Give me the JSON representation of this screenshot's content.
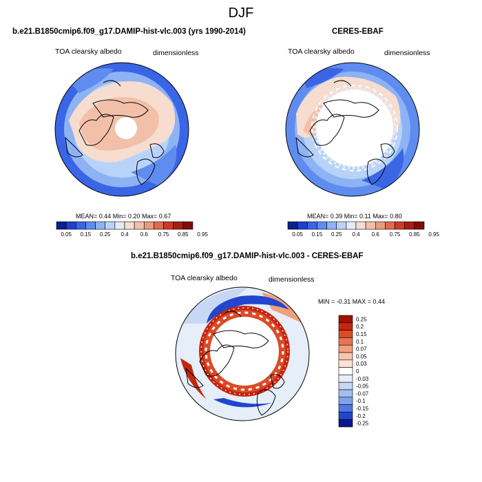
{
  "figure": {
    "title": "DJF"
  },
  "panels": [
    {
      "id": "model",
      "title": "b.e21.B1850cmip6.f09_g17.DAMIP-hist-vlc.003 (yrs 1990-2014)",
      "variable": "TOA clearsky albedo",
      "units": "dimensionless",
      "stats": "MEAN=  0.44  Min=   0.20  Max=   0.67",
      "colorbar_labels": [
        "0.05",
        "0.15",
        "0.25",
        "0.4",
        "0.6",
        "0.75",
        "0.85",
        "0.95"
      ]
    },
    {
      "id": "obs",
      "title": "CERES-EBAF",
      "variable": "TOA clearsky albedo",
      "units": "dimensionless",
      "stats": "MEAN=  0.39  Min=   0.11  Max=   0.80",
      "colorbar_labels": [
        "0.05",
        "0.15",
        "0.25",
        "0.4",
        "0.6",
        "0.75",
        "0.85",
        "0.95"
      ]
    },
    {
      "id": "diff",
      "title": "b.e21.B1850cmip6.f09_g17.DAMIP-hist-vlc.003 - CERES-EBAF",
      "variable": "TOA clearsky albedo",
      "units": "dimensionless",
      "stats": "MIN =  -0.31 MAX =   0.44",
      "colorbar_labels": [
        "0.25",
        "0.2",
        "0.15",
        "0.1",
        "0.07",
        "0.05",
        "0.03",
        "0",
        "-0.03",
        "-0.05",
        "-0.07",
        "-0.1",
        "-0.15",
        "-0.2",
        "-0.25"
      ]
    }
  ],
  "colors": {
    "abs_scale": [
      "#0b1f8f",
      "#1f3fcc",
      "#3a66e6",
      "#5f8cef",
      "#8db3f5",
      "#b9d3f8",
      "#e4ecf8",
      "#f6ddd0",
      "#f2c0a8",
      "#eb9a7e",
      "#e06a4d",
      "#cc3a26",
      "#a71d13",
      "#7f0d08"
    ],
    "diff_scale": [
      "#a01000",
      "#c4260e",
      "#dc4a28",
      "#ea7450",
      "#f3a07e",
      "#f8c4aa",
      "#fbe2d6",
      "#ffffff",
      "#e6eef9",
      "#c6d8f3",
      "#a2bef0",
      "#7ea2ec",
      "#4f78e2",
      "#2246cf",
      "#0a1890"
    ],
    "pole_white": "#ffffff",
    "land_outline": "#000000"
  }
}
